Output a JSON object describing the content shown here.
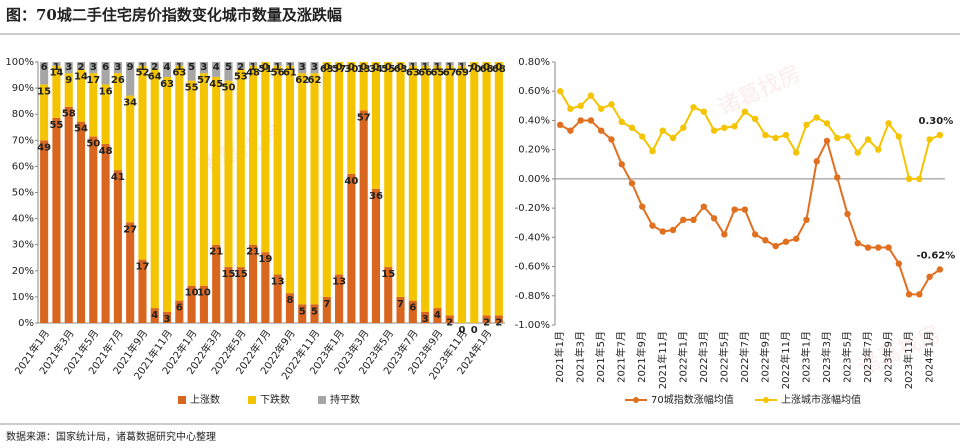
{
  "title": "图：70城二手住宅房价指数变化城市数量及涨跌幅",
  "source": "数据来源：国家统计局，诸葛数据研究中心整理",
  "watermark": "诸葛找房",
  "chart_data": [
    {
      "type": "stacked_bar",
      "categories": [
        "2021年1月",
        null,
        "2021年3月",
        null,
        "2021年5月",
        null,
        "2021年7月",
        null,
        "2021年9月",
        null,
        "2021年11月",
        null,
        "2022年1月",
        null,
        "2022年3月",
        null,
        "2022年5月",
        null,
        "2022年7月",
        null,
        "2022年9月",
        null,
        "2022年11月",
        null,
        "2023年1月",
        null,
        "2023年3月",
        null,
        "2023年5月",
        null,
        "2023年7月",
        null,
        "2023年9月",
        null,
        "2023年11月",
        null,
        "2024年1月",
        null
      ],
      "series": [
        {
          "name": "上涨数",
          "color": "#d9661f",
          "values": [
            49,
            55,
            58,
            54,
            50,
            48,
            41,
            27,
            17,
            4,
            3,
            6,
            10,
            10,
            21,
            15,
            15,
            21,
            19,
            13,
            8,
            5,
            5,
            7,
            13,
            40,
            57,
            36,
            15,
            7,
            6,
            3,
            4,
            2,
            0,
            0,
            2,
            2
          ]
        },
        {
          "name": "下跌数",
          "color": "#f5c400",
          "values": [
            15,
            14,
            9,
            14,
            17,
            16,
            26,
            34,
            52,
            64,
            63,
            63,
            55,
            57,
            45,
            50,
            53,
            48,
            51,
            56,
            61,
            62,
            62,
            63,
            57,
            30,
            13,
            34,
            55,
            63,
            63,
            66,
            65,
            67,
            69,
            70,
            68,
            68
          ]
        },
        {
          "name": "持平数",
          "color": "#a6a6a6",
          "values": [
            6,
            1,
            3,
            2,
            3,
            6,
            3,
            9,
            1,
            2,
            4,
            1,
            5,
            3,
            4,
            5,
            2,
            1,
            0,
            1,
            1,
            3,
            3,
            0,
            0,
            0,
            0,
            0,
            0,
            0,
            1,
            1,
            1,
            1,
            1,
            0,
            0,
            0
          ]
        }
      ],
      "ylim": [
        0,
        70
      ],
      "yticks": [
        {
          "value": 0,
          "label": "0%"
        },
        {
          "value": 7,
          "label": "10%"
        },
        {
          "value": 14,
          "label": "20%"
        },
        {
          "value": 21,
          "label": "30%"
        },
        {
          "value": 28,
          "label": "40%"
        },
        {
          "value": 35,
          "label": "50%"
        },
        {
          "value": 42,
          "label": "60%"
        },
        {
          "value": 49,
          "label": "70%"
        },
        {
          "value": 56,
          "label": "80%"
        },
        {
          "value": 63,
          "label": "90%"
        },
        {
          "value": 70,
          "label": "100%"
        }
      ]
    },
    {
      "type": "line",
      "categories": [
        "2021年1月",
        null,
        "2021年3月",
        null,
        "2021年5月",
        null,
        "2021年7月",
        null,
        "2021年9月",
        null,
        "2021年11月",
        null,
        "2022年1月",
        null,
        "2022年3月",
        null,
        "2022年5月",
        null,
        "2022年7月",
        null,
        "2022年9月",
        null,
        "2022年11月",
        null,
        "2023年1月",
        null,
        "2023年3月",
        null,
        "2023年5月",
        null,
        "2023年7月",
        null,
        "2023年9月",
        null,
        "2023年11月",
        null,
        "2024年1月",
        null
      ],
      "series": [
        {
          "name": "70城指数涨幅均值",
          "color": "#e07020",
          "values": [
            0.37,
            0.33,
            0.4,
            0.4,
            0.33,
            0.27,
            0.1,
            -0.03,
            -0.19,
            -0.32,
            -0.36,
            -0.35,
            -0.28,
            -0.28,
            -0.19,
            -0.27,
            -0.38,
            -0.21,
            -0.21,
            -0.38,
            -0.42,
            -0.46,
            -0.43,
            -0.41,
            -0.28,
            0.12,
            0.26,
            0.01,
            -0.24,
            -0.44,
            -0.47,
            -0.47,
            -0.47,
            -0.58,
            -0.79,
            -0.79,
            -0.67,
            -0.62
          ],
          "value_labels": [
            null,
            null,
            null,
            null,
            null,
            null,
            null,
            null,
            null,
            null,
            null,
            null,
            null,
            null,
            null,
            null,
            null,
            null,
            null,
            null,
            null,
            null,
            null,
            null,
            null,
            null,
            null,
            null,
            null,
            null,
            null,
            null,
            null,
            null,
            null,
            null,
            null,
            "-0.62%"
          ]
        },
        {
          "name": "上涨城市涨幅均值",
          "color": "#f5c400",
          "values": [
            0.6,
            0.48,
            0.5,
            0.57,
            0.48,
            0.51,
            0.39,
            0.35,
            0.29,
            0.19,
            0.33,
            0.28,
            0.35,
            0.49,
            0.46,
            0.33,
            0.35,
            0.36,
            0.46,
            0.41,
            0.3,
            0.28,
            0.3,
            0.18,
            0.37,
            0.42,
            0.38,
            0.28,
            0.29,
            0.18,
            0.27,
            0.2,
            0.38,
            0.29,
            0,
            0,
            0.27,
            0.3
          ],
          "value_labels": [
            null,
            null,
            null,
            null,
            null,
            null,
            null,
            null,
            null,
            null,
            null,
            null,
            null,
            null,
            null,
            null,
            null,
            null,
            null,
            null,
            null,
            null,
            null,
            null,
            null,
            null,
            null,
            null,
            null,
            null,
            null,
            null,
            null,
            null,
            null,
            null,
            null,
            "0.30%"
          ]
        }
      ],
      "ylim": [
        -1.0,
        0.8
      ],
      "yticks": [
        {
          "value": 0.8,
          "label": "0.80%"
        },
        {
          "value": 0.6,
          "label": "0.60%"
        },
        {
          "value": 0.4,
          "label": "0.40%"
        },
        {
          "value": 0.2,
          "label": "0.20%"
        },
        {
          "value": 0,
          "label": "0.00%"
        },
        {
          "value": -0.2,
          "label": "-0.20%"
        },
        {
          "value": -0.4,
          "label": "-0.40%"
        },
        {
          "value": -0.6,
          "label": "-0.60%"
        },
        {
          "value": -0.8,
          "label": "-0.80%"
        },
        {
          "value": -1.0,
          "label": "-1.00%"
        }
      ]
    }
  ]
}
